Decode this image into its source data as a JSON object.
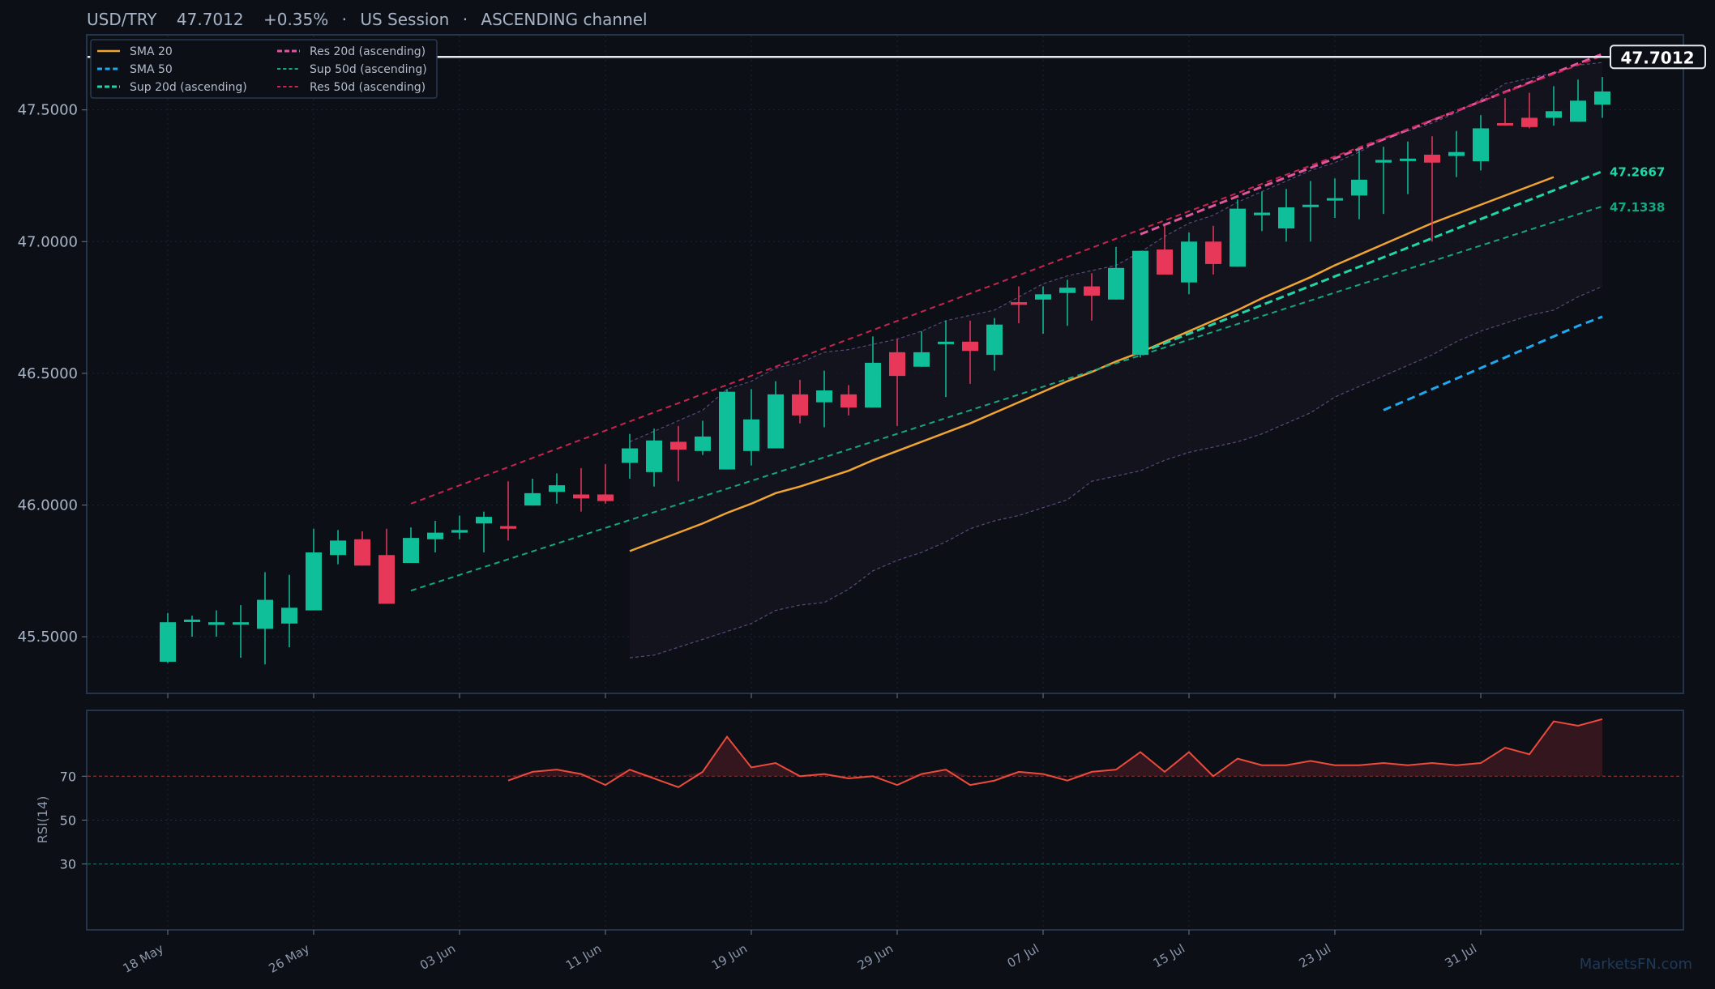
{
  "header": {
    "symbol": "USD/TRY",
    "price": "47.7012",
    "change": "+0.35%",
    "session": "US Session",
    "channel": "ASCENDING channel"
  },
  "watermark": "MarketsFN.com",
  "colors": {
    "background": "#0c0f16",
    "up": "#0fbf99",
    "down": "#e8385a",
    "sma20": "#f0a431",
    "sma50": "#1ea8f0",
    "sup20": "#21d6a6",
    "sup50": "#14a77f",
    "res20": "#e0559e",
    "res50": "#c8244f",
    "rsi": "#ec4b3c"
  },
  "chart_data": [
    {
      "type": "candlestick",
      "ylim": [
        45.285,
        47.785
      ],
      "yticks": [
        "45.5000",
        "46.0000",
        "46.5000",
        "47.0000",
        "47.5000"
      ],
      "x_ticks": [
        {
          "label": "18 May",
          "index": 0
        },
        {
          "label": "26 May",
          "index": 6
        },
        {
          "label": "03 Jun",
          "index": 12
        },
        {
          "label": "11 Jun",
          "index": 18
        },
        {
          "label": "19 Jun",
          "index": 24
        },
        {
          "label": "29 Jun",
          "index": 30
        },
        {
          "label": "07 Jul",
          "index": 36
        },
        {
          "label": "15 Jul",
          "index": 42
        },
        {
          "label": "23 Jul",
          "index": 48
        },
        {
          "label": "31 Jul",
          "index": 54
        }
      ],
      "candles": [
        [
          45.405,
          45.555,
          45.4,
          45.59
        ],
        [
          45.56,
          45.565,
          45.5,
          45.58
        ],
        [
          45.545,
          45.555,
          45.5,
          45.6
        ],
        [
          45.55,
          45.555,
          45.42,
          45.62
        ],
        [
          45.53,
          45.64,
          45.395,
          45.745
        ],
        [
          45.55,
          45.61,
          45.46,
          45.735
        ],
        [
          45.6,
          45.82,
          45.6,
          45.91
        ],
        [
          45.81,
          45.865,
          45.775,
          45.905
        ],
        [
          45.87,
          45.77,
          45.77,
          45.9
        ],
        [
          45.81,
          45.625,
          45.625,
          45.91
        ],
        [
          45.78,
          45.875,
          45.78,
          45.915
        ],
        [
          45.87,
          45.895,
          45.82,
          45.94
        ],
        [
          45.895,
          45.905,
          45.87,
          45.96
        ],
        [
          45.93,
          45.955,
          45.82,
          45.975
        ],
        [
          45.92,
          45.91,
          45.865,
          46.09
        ],
        [
          45.998,
          46.045,
          45.998,
          46.1
        ],
        [
          46.05,
          46.075,
          46.005,
          46.12
        ],
        [
          46.04,
          46.025,
          45.975,
          46.14
        ],
        [
          46.04,
          46.015,
          46.005,
          46.155
        ],
        [
          46.16,
          46.215,
          46.1,
          46.27
        ],
        [
          46.125,
          46.245,
          46.07,
          46.29
        ],
        [
          46.24,
          46.21,
          46.09,
          46.3
        ],
        [
          46.205,
          46.26,
          46.19,
          46.32
        ],
        [
          46.135,
          46.43,
          46.135,
          46.44
        ],
        [
          46.205,
          46.325,
          46.15,
          46.44
        ],
        [
          46.215,
          46.42,
          46.215,
          46.47
        ],
        [
          46.42,
          46.34,
          46.31,
          46.475
        ],
        [
          46.39,
          46.435,
          46.295,
          46.51
        ],
        [
          46.42,
          46.37,
          46.34,
          46.455
        ],
        [
          46.37,
          46.54,
          46.37,
          46.64
        ],
        [
          46.58,
          46.49,
          46.3,
          46.63
        ],
        [
          46.525,
          46.58,
          46.525,
          46.66
        ],
        [
          46.615,
          46.62,
          46.41,
          46.7
        ],
        [
          46.62,
          46.585,
          46.46,
          46.7
        ],
        [
          46.57,
          46.685,
          46.51,
          46.71
        ],
        [
          46.77,
          46.76,
          46.69,
          46.83
        ],
        [
          46.78,
          46.8,
          46.65,
          46.83
        ],
        [
          46.805,
          46.825,
          46.68,
          46.855
        ],
        [
          46.83,
          46.795,
          46.7,
          46.88
        ],
        [
          46.78,
          46.9,
          46.78,
          46.98
        ],
        [
          46.57,
          46.965,
          46.56,
          46.965
        ],
        [
          46.97,
          46.875,
          46.875,
          47.06
        ],
        [
          46.845,
          47.0,
          46.8,
          47.035
        ],
        [
          47.0,
          46.915,
          46.875,
          47.06
        ],
        [
          46.905,
          47.125,
          46.905,
          47.16
        ],
        [
          47.1,
          47.11,
          47.04,
          47.19
        ],
        [
          47.05,
          47.13,
          47.0,
          47.2
        ],
        [
          47.135,
          47.14,
          47.0,
          47.23
        ],
        [
          47.16,
          47.165,
          47.09,
          47.24
        ],
        [
          47.175,
          47.235,
          47.085,
          47.35
        ],
        [
          47.3,
          47.31,
          47.105,
          47.36
        ],
        [
          47.31,
          47.315,
          47.18,
          47.38
        ],
        [
          47.33,
          47.3,
          47.0,
          47.4
        ],
        [
          47.325,
          47.34,
          47.245,
          47.42
        ],
        [
          47.305,
          47.43,
          47.27,
          47.48
        ],
        [
          47.45,
          47.445,
          47.44,
          47.545
        ],
        [
          47.47,
          47.435,
          47.43,
          47.565
        ],
        [
          47.47,
          47.495,
          47.44,
          47.59
        ],
        [
          47.455,
          47.535,
          47.455,
          47.615
        ],
        [
          47.52,
          47.57,
          47.47,
          47.625
        ]
      ],
      "current_price": {
        "value": 47.7012,
        "label": "47.7012"
      },
      "bands": {
        "start_index": 19,
        "upper": [
          46.24,
          46.28,
          46.32,
          46.36,
          46.44,
          46.47,
          46.52,
          46.54,
          46.58,
          46.59,
          46.61,
          46.63,
          46.66,
          46.7,
          46.72,
          46.74,
          46.79,
          46.84,
          46.87,
          46.89,
          46.91,
          46.96,
          47.02,
          47.07,
          47.1,
          47.15,
          47.19,
          47.23,
          47.27,
          47.3,
          47.34,
          47.39,
          47.42,
          47.45,
          47.49,
          47.54,
          47.6,
          47.62,
          47.64,
          47.67,
          47.68
        ],
        "lower": [
          45.42,
          45.43,
          45.46,
          45.49,
          45.52,
          45.55,
          45.6,
          45.62,
          45.63,
          45.68,
          45.75,
          45.79,
          45.82,
          45.86,
          45.91,
          45.94,
          45.96,
          45.99,
          46.02,
          46.09,
          46.11,
          46.13,
          46.17,
          46.2,
          46.22,
          46.24,
          46.27,
          46.31,
          46.35,
          46.41,
          46.45,
          46.49,
          46.53,
          46.57,
          46.62,
          46.66,
          46.69,
          46.72,
          46.74,
          46.79,
          46.83
        ]
      },
      "series": [
        {
          "name": "SMA 20",
          "start_index": 19,
          "values": [
            45.825,
            45.86,
            45.895,
            45.93,
            45.97,
            46.005,
            46.045,
            46.07,
            46.1,
            46.13,
            46.17,
            46.205,
            46.24,
            46.275,
            46.31,
            46.35,
            46.39,
            46.43,
            46.47,
            46.505,
            46.545,
            46.58,
            46.62,
            46.66,
            46.7,
            46.74,
            46.785,
            46.825,
            46.865,
            46.91,
            46.95,
            46.99,
            47.03,
            47.07,
            47.105,
            47.14,
            47.175,
            47.21,
            47.245
          ]
        },
        {
          "name": "SMA 50",
          "start_index": 50,
          "values": [
            46.36,
            46.4,
            46.44,
            46.48,
            46.52,
            46.56,
            46.6,
            46.64,
            46.68,
            46.715
          ]
        },
        {
          "name": "Sup 20d (ascending)",
          "line": [
            [
              40,
              46.578
            ],
            [
              59,
              47.2667
            ]
          ],
          "label": "47.2667"
        },
        {
          "name": "Sup 50d (ascending)",
          "line": [
            [
              10,
              45.675
            ],
            [
              59,
              47.1338
            ]
          ],
          "label": "47.1338"
        },
        {
          "name": "Res 20d (ascending)",
          "line": [
            [
              40,
              47.028
            ],
            [
              59,
              47.712
            ]
          ]
        },
        {
          "name": "Res 50d (ascending)",
          "line": [
            [
              10,
              46.005
            ],
            [
              59,
              47.705
            ]
          ]
        }
      ],
      "legend_position": "top-left"
    },
    {
      "type": "line",
      "ylabel": "RSI(14)",
      "ylim": [
        0,
        100
      ],
      "yticks": [
        30,
        50,
        70
      ],
      "overbought": 70,
      "oversold": 30,
      "start_index": 14,
      "values": [
        68,
        72,
        73,
        71,
        66,
        73,
        69,
        65,
        72,
        88,
        74,
        76,
        70,
        71,
        69,
        70,
        66,
        71,
        73,
        66,
        68,
        72,
        71,
        68,
        72,
        73,
        81,
        72,
        81,
        70,
        78,
        75,
        75,
        77,
        75,
        75,
        76,
        75,
        76,
        75,
        76,
        83,
        80,
        95,
        93,
        96
      ]
    }
  ]
}
